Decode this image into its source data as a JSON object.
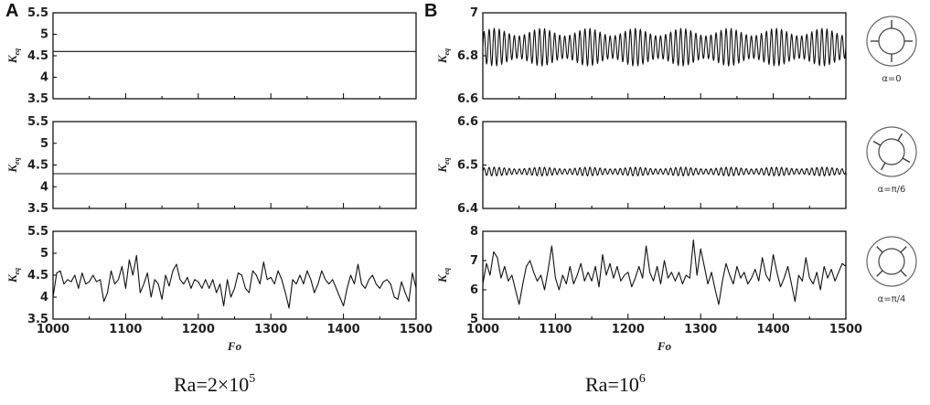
{
  "panels": [
    {
      "letter": "A",
      "caption_base": "Ra=2×10",
      "caption_exp": "5"
    },
    {
      "letter": "B",
      "caption_base": "Ra=10",
      "caption_exp": "6"
    }
  ],
  "icons": [
    {
      "caption": "α=0",
      "fins_deg": [
        0,
        90,
        180,
        270
      ]
    },
    {
      "caption": "α=π/6",
      "fins_deg": [
        30,
        120,
        210,
        300
      ]
    },
    {
      "caption": "α=π/4",
      "fins_deg": [
        45,
        135,
        225,
        315
      ]
    }
  ],
  "chart_data": [
    {
      "panel": "A",
      "row": 0,
      "type": "line",
      "xlabel": "",
      "ylabel": "K",
      "ylabel_sub": "eq",
      "xlim": [
        1000,
        1500
      ],
      "ylim": [
        3.5,
        5.5
      ],
      "yticks": [
        "3.5",
        "4",
        "4.5",
        "5",
        "5.5"
      ],
      "xticks": [],
      "series": [
        {
          "kind": "constant",
          "value": 4.6
        }
      ]
    },
    {
      "panel": "A",
      "row": 1,
      "type": "line",
      "xlabel": "",
      "ylabel": "K",
      "ylabel_sub": "eq",
      "xlim": [
        1000,
        1500
      ],
      "ylim": [
        3.5,
        5.5
      ],
      "yticks": [
        "3.5",
        "4",
        "4.5",
        "5",
        "5.5"
      ],
      "xticks": [],
      "series": [
        {
          "kind": "constant",
          "value": 4.3
        }
      ]
    },
    {
      "panel": "A",
      "row": 2,
      "type": "line",
      "xlabel": "Fo",
      "ylabel": "K",
      "ylabel_sub": "eq",
      "xlim": [
        1000,
        1500
      ],
      "ylim": [
        3.5,
        5.5
      ],
      "yticks": [
        "3.5",
        "4",
        "4.5",
        "5",
        "5.5"
      ],
      "xticks": [
        "1000",
        "1100",
        "1200",
        "1300",
        "1400",
        "1500"
      ],
      "series": [
        {
          "kind": "irregular",
          "x": [
            1000,
            1005,
            1010,
            1015,
            1020,
            1025,
            1030,
            1035,
            1040,
            1045,
            1050,
            1055,
            1060,
            1065,
            1070,
            1075,
            1080,
            1085,
            1090,
            1095,
            1100,
            1105,
            1110,
            1115,
            1120,
            1125,
            1130,
            1135,
            1140,
            1145,
            1150,
            1155,
            1160,
            1165,
            1170,
            1175,
            1180,
            1185,
            1190,
            1195,
            1200,
            1205,
            1210,
            1215,
            1220,
            1225,
            1230,
            1235,
            1240,
            1245,
            1250,
            1255,
            1260,
            1265,
            1270,
            1275,
            1280,
            1285,
            1290,
            1295,
            1300,
            1305,
            1310,
            1315,
            1320,
            1325,
            1330,
            1335,
            1340,
            1345,
            1350,
            1355,
            1360,
            1365,
            1370,
            1375,
            1380,
            1385,
            1390,
            1395,
            1400,
            1405,
            1410,
            1415,
            1420,
            1425,
            1430,
            1435,
            1440,
            1445,
            1450,
            1455,
            1460,
            1465,
            1470,
            1475,
            1480,
            1485,
            1490,
            1495,
            1500
          ],
          "values": [
            4.0,
            4.55,
            4.6,
            4.3,
            4.4,
            4.35,
            4.5,
            4.2,
            4.55,
            4.3,
            4.35,
            4.5,
            4.35,
            4.4,
            3.9,
            4.1,
            4.6,
            4.3,
            4.4,
            4.7,
            4.2,
            4.85,
            4.5,
            4.95,
            4.1,
            4.3,
            4.55,
            4.0,
            4.4,
            4.3,
            3.95,
            4.5,
            4.25,
            4.6,
            4.75,
            4.4,
            4.3,
            4.45,
            4.2,
            4.4,
            4.35,
            4.2,
            4.4,
            4.2,
            4.4,
            4.1,
            4.3,
            3.8,
            4.4,
            4.0,
            4.2,
            4.55,
            4.5,
            4.2,
            4.1,
            4.6,
            4.5,
            4.3,
            4.8,
            4.4,
            4.45,
            4.3,
            4.6,
            4.4,
            4.1,
            3.75,
            4.4,
            4.3,
            4.5,
            4.3,
            4.6,
            4.4,
            4.1,
            4.3,
            4.6,
            4.4,
            4.3,
            4.4,
            4.2,
            4.0,
            3.8,
            4.2,
            4.5,
            4.3,
            4.75,
            4.3,
            4.2,
            4.4,
            4.5,
            4.3,
            4.2,
            4.35,
            4.4,
            4.3,
            4.0,
            3.95,
            4.35,
            4.1,
            3.9,
            4.55,
            4.2
          ]
        }
      ]
    },
    {
      "panel": "B",
      "row": 0,
      "type": "line",
      "xlabel": "",
      "ylabel": "K",
      "ylabel_sub": "eq",
      "xlim": [
        1000,
        1500
      ],
      "ylim": [
        6.6,
        7.0
      ],
      "yticks": [
        "6.6",
        "6.8",
        "7"
      ],
      "xticks": [],
      "series": [
        {
          "kind": "oscillation",
          "mean": 6.84,
          "amplitude": 0.07,
          "cycles": 72
        }
      ]
    },
    {
      "panel": "B",
      "row": 1,
      "type": "line",
      "xlabel": "",
      "ylabel": "K",
      "ylabel_sub": "eq",
      "xlim": [
        1000,
        1500
      ],
      "ylim": [
        6.4,
        6.6
      ],
      "yticks": [
        "6.4",
        "6.5",
        "6.6"
      ],
      "xticks": [],
      "series": [
        {
          "kind": "oscillation",
          "mean": 6.485,
          "amplitude": 0.008,
          "cycles": 72
        }
      ]
    },
    {
      "panel": "B",
      "row": 2,
      "type": "line",
      "xlabel": "Fo",
      "ylabel": "K",
      "ylabel_sub": "eq",
      "xlim": [
        1000,
        1500
      ],
      "ylim": [
        5,
        8
      ],
      "yticks": [
        "5",
        "6",
        "7",
        "8"
      ],
      "xticks": [
        "1000",
        "1100",
        "1200",
        "1300",
        "1400",
        "1500"
      ],
      "series": [
        {
          "kind": "irregular",
          "x": [
            1000,
            1005,
            1010,
            1015,
            1020,
            1025,
            1030,
            1035,
            1040,
            1045,
            1050,
            1055,
            1060,
            1065,
            1070,
            1075,
            1080,
            1085,
            1090,
            1095,
            1100,
            1105,
            1110,
            1115,
            1120,
            1125,
            1130,
            1135,
            1140,
            1145,
            1150,
            1155,
            1160,
            1165,
            1170,
            1175,
            1180,
            1185,
            1190,
            1195,
            1200,
            1205,
            1210,
            1215,
            1220,
            1225,
            1230,
            1235,
            1240,
            1245,
            1250,
            1255,
            1260,
            1265,
            1270,
            1275,
            1280,
            1285,
            1290,
            1295,
            1300,
            1305,
            1310,
            1315,
            1320,
            1325,
            1330,
            1335,
            1340,
            1345,
            1350,
            1355,
            1360,
            1365,
            1370,
            1375,
            1380,
            1385,
            1390,
            1395,
            1400,
            1405,
            1410,
            1415,
            1420,
            1425,
            1430,
            1435,
            1440,
            1445,
            1450,
            1455,
            1460,
            1465,
            1470,
            1475,
            1480,
            1485,
            1490,
            1495,
            1500
          ],
          "values": [
            6.2,
            6.9,
            6.5,
            7.3,
            7.1,
            6.4,
            6.8,
            6.3,
            6.5,
            6.0,
            5.5,
            6.2,
            6.8,
            7.0,
            6.6,
            6.3,
            6.5,
            6.0,
            6.7,
            7.5,
            6.4,
            6.0,
            6.5,
            6.2,
            6.8,
            6.2,
            6.5,
            6.9,
            6.3,
            6.6,
            6.3,
            6.8,
            6.1,
            7.2,
            6.5,
            6.9,
            6.4,
            6.8,
            6.3,
            6.5,
            6.6,
            6.1,
            6.4,
            6.8,
            6.4,
            7.5,
            6.6,
            6.3,
            6.8,
            6.2,
            7.0,
            6.4,
            6.6,
            6.3,
            6.6,
            6.2,
            6.5,
            6.4,
            7.7,
            6.5,
            7.4,
            6.8,
            6.2,
            6.6,
            6.0,
            5.5,
            6.3,
            6.9,
            6.5,
            6.2,
            6.8,
            6.4,
            6.6,
            6.2,
            6.4,
            6.7,
            6.3,
            7.1,
            6.5,
            6.3,
            7.2,
            6.6,
            6.1,
            6.4,
            6.8,
            6.2,
            5.6,
            6.5,
            6.3,
            7.1,
            6.4,
            6.2,
            6.6,
            6.0,
            6.8,
            6.4,
            6.7,
            6.3,
            6.6,
            6.9,
            6.8
          ]
        }
      ]
    }
  ]
}
